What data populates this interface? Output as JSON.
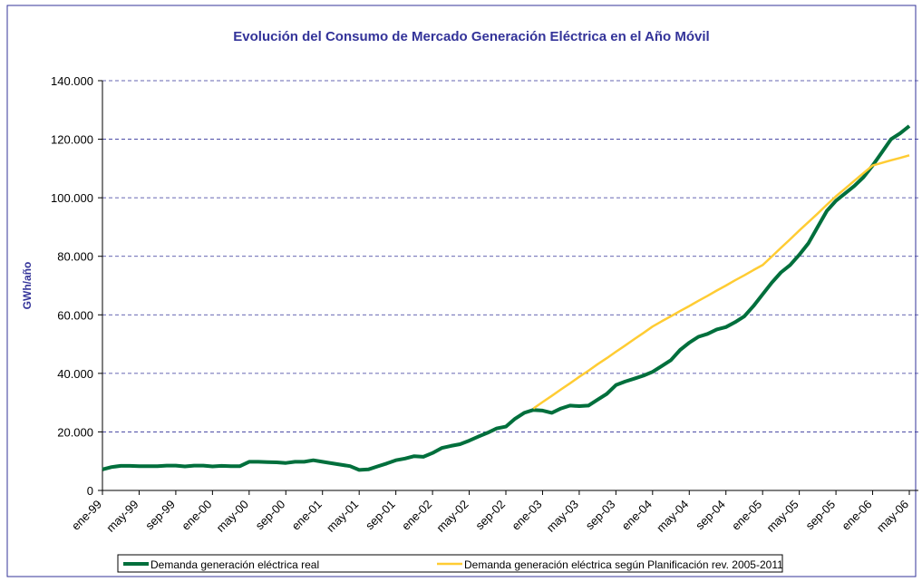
{
  "chart_data": {
    "type": "line",
    "title": "Evolución del Consumo de Mercado Generación Eléctrica en el Año Móvil",
    "y_label": "GWh/año",
    "categories": [
      "ene-99",
      null,
      null,
      null,
      "may-99",
      null,
      null,
      null,
      "sep-99",
      null,
      null,
      null,
      "ene-00",
      null,
      null,
      null,
      "may-00",
      null,
      null,
      null,
      "sep-00",
      null,
      null,
      null,
      "ene-01",
      null,
      null,
      null,
      "may-01",
      null,
      null,
      null,
      "sep-01",
      null,
      null,
      null,
      "ene-02",
      null,
      null,
      null,
      "may-02",
      null,
      null,
      null,
      "sep-02",
      null,
      null,
      null,
      "ene-03",
      null,
      null,
      null,
      "may-03",
      null,
      null,
      null,
      "sep-03",
      null,
      null,
      null,
      "ene-04",
      null,
      null,
      null,
      "may-04",
      null,
      null,
      null,
      "sep-04",
      null,
      null,
      null,
      "ene-05",
      null,
      null,
      null,
      "may-05",
      null,
      null,
      null,
      "sep-05",
      null,
      null,
      null,
      "ene-06",
      null,
      null,
      null,
      "may-06"
    ],
    "series": [
      {
        "name": "Demanda generación eléctrica real",
        "color": "#006f3c",
        "values": [
          7200,
          8000,
          8400,
          8400,
          8300,
          8300,
          8300,
          8500,
          8500,
          8200,
          8500,
          8500,
          8200,
          8400,
          8300,
          8300,
          9800,
          9800,
          9700,
          9600,
          9400,
          9800,
          9800,
          10300,
          9800,
          9300,
          8800,
          8300,
          7000,
          7200,
          8200,
          9200,
          10300,
          10900,
          11700,
          11500,
          12800,
          14500,
          15200,
          15800,
          17000,
          18400,
          19700,
          21200,
          21800,
          24500,
          26500,
          27500,
          27300,
          26500,
          28000,
          29000,
          28800,
          29000,
          31000,
          33000,
          36000,
          37200,
          38200,
          39200,
          40500,
          42500,
          44500,
          48000,
          50500,
          52500,
          53500,
          55000,
          55800,
          57500,
          59500,
          63000,
          67000,
          71000,
          74500,
          77000,
          80500,
          84500,
          90000,
          95500,
          99000,
          101500,
          104000,
          107000,
          111000,
          115500,
          120000,
          122000,
          124500
        ]
      },
      {
        "name": "Demanda generación eléctrica según Planificación rev. 2005-2011",
        "color": "#ffcc33",
        "values": [
          null,
          null,
          null,
          null,
          null,
          null,
          null,
          null,
          null,
          null,
          null,
          null,
          null,
          null,
          null,
          null,
          null,
          null,
          null,
          null,
          null,
          null,
          null,
          null,
          null,
          null,
          null,
          null,
          null,
          null,
          null,
          null,
          null,
          null,
          null,
          null,
          null,
          null,
          null,
          null,
          null,
          null,
          null,
          null,
          null,
          null,
          null,
          28000,
          30200,
          32300,
          34500,
          36600,
          38800,
          40900,
          43100,
          45200,
          47400,
          49500,
          51700,
          53800,
          56000,
          57800,
          59500,
          61300,
          63000,
          64800,
          66500,
          68300,
          70000,
          71800,
          73500,
          75300,
          77000,
          79900,
          82900,
          85800,
          88800,
          91700,
          94600,
          97600,
          100500,
          103100,
          105800,
          108400,
          111000,
          111900,
          112800,
          113600,
          114500
        ]
      }
    ],
    "ylim": [
      0,
      140000
    ],
    "yticks": [
      0,
      {
        "value": 20000,
        "label": "20.000"
      },
      {
        "value": 40000,
        "label": "40.000"
      },
      {
        "value": 60000,
        "label": "60.000"
      },
      {
        "value": 80000,
        "label": "80.000"
      },
      {
        "value": 100000,
        "label": "100.000"
      },
      {
        "value": 120000,
        "label": "120.000"
      },
      {
        "value": 140000,
        "label": "140.000"
      }
    ],
    "grid": true,
    "legend": "bottom"
  }
}
